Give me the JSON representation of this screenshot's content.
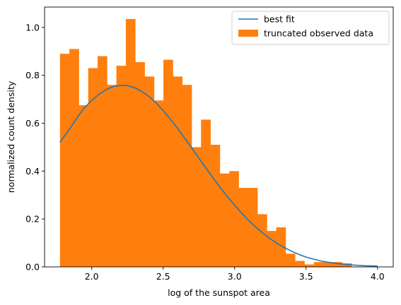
{
  "chart_data": {
    "type": "bar",
    "xlabel": "log of the sunspot area",
    "ylabel": "normalized count density",
    "xlim": [
      1.67,
      4.11
    ],
    "ylim": [
      0.0,
      1.085
    ],
    "xticks": [
      "2.0",
      "2.5",
      "3.0",
      "3.5",
      "4.0"
    ],
    "xtick_values": [
      2.0,
      2.5,
      3.0,
      3.5,
      4.0
    ],
    "yticks": [
      "0.0",
      "0.2",
      "0.4",
      "0.6",
      "0.8",
      "1.0"
    ],
    "ytick_values": [
      0.0,
      0.2,
      0.4,
      0.6,
      0.8,
      1.0
    ],
    "grid": false,
    "legend_position": "top-right",
    "histogram": {
      "name": "truncated observed data",
      "color": "#ff7f0e",
      "bin_start": 1.778,
      "bin_width": 0.0658,
      "values": [
        0.89,
        0.91,
        0.675,
        0.83,
        0.88,
        0.76,
        0.84,
        1.035,
        0.855,
        0.795,
        0.695,
        0.865,
        0.795,
        0.76,
        0.5,
        0.615,
        0.51,
        0.39,
        0.4,
        0.33,
        0.33,
        0.22,
        0.15,
        0.165,
        0.055,
        0.025,
        0.01,
        0.02,
        0.02,
        0.02,
        0.015
      ]
    },
    "fit_curve": {
      "name": "best fit",
      "color": "#1f77b4",
      "x": [
        1.778,
        1.85,
        1.9,
        1.95,
        2.0,
        2.05,
        2.1,
        2.15,
        2.2,
        2.25,
        2.3,
        2.35,
        2.4,
        2.45,
        2.5,
        2.55,
        2.6,
        2.65,
        2.7,
        2.75,
        2.8,
        2.85,
        2.9,
        2.95,
        3.0,
        3.05,
        3.1,
        3.15,
        3.2,
        3.25,
        3.3,
        3.35,
        3.4,
        3.45,
        3.5,
        3.6,
        3.7,
        3.8,
        3.9,
        4.0
      ],
      "y": [
        0.52,
        0.58,
        0.625,
        0.665,
        0.695,
        0.72,
        0.74,
        0.753,
        0.758,
        0.757,
        0.748,
        0.733,
        0.712,
        0.685,
        0.653,
        0.617,
        0.579,
        0.538,
        0.496,
        0.454,
        0.412,
        0.371,
        0.331,
        0.293,
        0.258,
        0.224,
        0.193,
        0.165,
        0.14,
        0.117,
        0.097,
        0.08,
        0.065,
        0.052,
        0.041,
        0.025,
        0.015,
        0.009,
        0.005,
        0.003
      ]
    }
  }
}
